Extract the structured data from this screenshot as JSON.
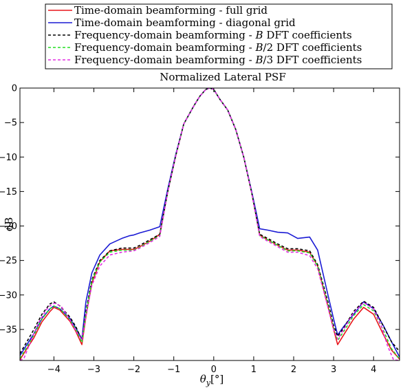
{
  "chart_data": {
    "type": "line",
    "title": "Normalized Lateral PSF",
    "xlabel": "θ_y[°]",
    "ylabel": "dB",
    "xlim": [
      -4.85,
      4.65
    ],
    "ylim": [
      -39.5,
      0
    ],
    "xticks": [
      -4,
      -3,
      -2,
      -1,
      0,
      1,
      2,
      3,
      4
    ],
    "yticks": [
      0,
      -5,
      -10,
      -15,
      -20,
      -25,
      -30,
      -35
    ],
    "grid": false,
    "legend_position": "top",
    "series": [
      {
        "name": "Time-domain beamforming - full grid",
        "color": "#e8151b",
        "dash": "solid",
        "x": [
          -4.85,
          -4.7,
          -4.5,
          -4.3,
          -4.1,
          -4.0,
          -3.85,
          -3.6,
          -3.45,
          -3.3,
          -3.2,
          -3.05,
          -2.85,
          -2.6,
          -2.3,
          -2.0,
          -1.85,
          -1.6,
          -1.35,
          -1.15,
          -0.95,
          -0.75,
          -0.5,
          -0.35,
          -0.2,
          -0.1,
          0.0,
          0.15,
          0.35,
          0.55,
          0.75,
          0.95,
          1.15,
          1.35,
          1.6,
          1.85,
          2.1,
          2.4,
          2.6,
          2.85,
          3.0,
          3.1,
          3.25,
          3.5,
          3.75,
          4.0,
          4.25,
          4.45,
          4.65
        ],
        "y": [
          -39.4,
          -38.0,
          -36.2,
          -33.9,
          -32.4,
          -31.8,
          -32.2,
          -33.8,
          -35.3,
          -37.2,
          -33.2,
          -28.3,
          -25.2,
          -23.6,
          -23.4,
          -23.4,
          -23.0,
          -22.2,
          -21.2,
          -15.0,
          -9.8,
          -5.2,
          -2.6,
          -1.2,
          -0.2,
          0.0,
          -0.2,
          -1.6,
          -3.2,
          -6.0,
          -10.0,
          -15.2,
          -21.3,
          -22.0,
          -22.8,
          -23.5,
          -23.5,
          -23.8,
          -25.8,
          -31.5,
          -35.0,
          -37.2,
          -35.8,
          -33.5,
          -31.8,
          -32.8,
          -35.8,
          -38.0,
          -39.3
        ]
      },
      {
        "name": "Time-domain beamforming - diagonal grid",
        "color": "#1a1ad4",
        "dash": "solid",
        "x": [
          -4.85,
          -4.7,
          -4.5,
          -4.3,
          -4.1,
          -4.0,
          -3.85,
          -3.6,
          -3.45,
          -3.3,
          -3.2,
          -3.05,
          -2.85,
          -2.6,
          -2.3,
          -2.1,
          -2.0,
          -1.85,
          -1.6,
          -1.35,
          -1.15,
          -0.95,
          -0.75,
          -0.5,
          -0.35,
          -0.2,
          -0.1,
          0.0,
          0.15,
          0.35,
          0.55,
          0.75,
          0.95,
          1.15,
          1.35,
          1.6,
          1.85,
          2.1,
          2.4,
          2.6,
          2.85,
          3.0,
          3.1,
          3.25,
          3.5,
          3.75,
          4.0,
          4.25,
          4.45,
          4.65
        ],
        "y": [
          -38.8,
          -37.4,
          -35.6,
          -33.4,
          -32.0,
          -31.6,
          -32.0,
          -33.4,
          -34.8,
          -36.4,
          -31.0,
          -26.8,
          -24.2,
          -22.6,
          -21.8,
          -21.4,
          -21.3,
          -21.0,
          -20.6,
          -20.1,
          -14.6,
          -9.6,
          -5.2,
          -2.6,
          -1.2,
          -0.2,
          0.0,
          -0.2,
          -1.6,
          -3.2,
          -6.0,
          -10.0,
          -15.0,
          -20.4,
          -20.6,
          -20.9,
          -21.0,
          -21.8,
          -21.6,
          -23.5,
          -29.8,
          -33.5,
          -35.8,
          -34.6,
          -32.8,
          -31.0,
          -32.0,
          -34.5,
          -36.8,
          -39.0
        ]
      },
      {
        "name": "Frequency-domain beamforming - B DFT coefficients",
        "color": "#000000",
        "dash": "dashed",
        "x": [
          -4.85,
          -4.7,
          -4.5,
          -4.3,
          -4.1,
          -4.0,
          -3.85,
          -3.6,
          -3.45,
          -3.3,
          -3.2,
          -3.05,
          -2.85,
          -2.6,
          -2.3,
          -2.0,
          -1.85,
          -1.6,
          -1.35,
          -1.15,
          -0.95,
          -0.75,
          -0.5,
          -0.35,
          -0.2,
          -0.1,
          0.0,
          0.15,
          0.35,
          0.55,
          0.75,
          0.95,
          1.15,
          1.35,
          1.6,
          1.85,
          2.1,
          2.4,
          2.6,
          2.85,
          3.0,
          3.1,
          3.25,
          3.5,
          3.75,
          4.0,
          4.25,
          4.45,
          4.65
        ],
        "y": [
          -38.5,
          -37.0,
          -35.0,
          -32.8,
          -31.3,
          -31.0,
          -31.6,
          -33.2,
          -34.6,
          -36.6,
          -32.4,
          -27.8,
          -25.0,
          -23.6,
          -23.2,
          -23.2,
          -22.8,
          -22.0,
          -21.2,
          -15.0,
          -9.8,
          -5.2,
          -2.6,
          -1.2,
          -0.2,
          0.0,
          -0.2,
          -1.6,
          -3.2,
          -6.0,
          -10.0,
          -15.2,
          -21.2,
          -21.8,
          -22.6,
          -23.3,
          -23.3,
          -23.6,
          -25.6,
          -30.8,
          -34.4,
          -36.0,
          -34.8,
          -32.4,
          -30.9,
          -31.8,
          -34.6,
          -36.8,
          -38.2
        ]
      },
      {
        "name": "Frequency-domain beamforming - B/2 DFT coefficients",
        "color": "#22dd22",
        "dash": "dashed",
        "x": [
          -4.85,
          -4.7,
          -4.5,
          -4.3,
          -4.1,
          -4.0,
          -3.85,
          -3.6,
          -3.45,
          -3.3,
          -3.2,
          -3.05,
          -2.85,
          -2.6,
          -2.3,
          -2.0,
          -1.85,
          -1.6,
          -1.35,
          -1.15,
          -0.95,
          -0.75,
          -0.5,
          -0.35,
          -0.2,
          -0.1,
          0.0,
          0.15,
          0.35,
          0.55,
          0.75,
          0.95,
          1.15,
          1.35,
          1.6,
          1.85,
          2.1,
          2.4,
          2.6,
          2.85,
          3.0,
          3.1,
          3.25,
          3.5,
          3.75,
          4.0,
          4.25,
          4.45,
          4.65
        ],
        "y": [
          -39.2,
          -37.8,
          -35.8,
          -33.5,
          -32.0,
          -31.6,
          -32.0,
          -33.6,
          -35.0,
          -36.9,
          -32.8,
          -28.0,
          -25.2,
          -23.8,
          -23.5,
          -23.5,
          -23.1,
          -22.2,
          -21.4,
          -15.0,
          -9.8,
          -5.2,
          -2.6,
          -1.2,
          -0.2,
          0.0,
          -0.2,
          -1.6,
          -3.2,
          -6.0,
          -10.0,
          -15.2,
          -21.4,
          -22.0,
          -22.8,
          -23.6,
          -23.6,
          -23.9,
          -25.8,
          -31.2,
          -34.8,
          -36.6,
          -35.3,
          -33.0,
          -31.4,
          -32.3,
          -35.2,
          -37.8,
          -39.3
        ]
      },
      {
        "name": "Frequency-domain beamforming - B/3 DFT coefficients",
        "color": "#e22ce2",
        "dash": "dashed",
        "x": [
          -4.85,
          -4.75,
          -4.6,
          -4.4,
          -4.2,
          -4.05,
          -3.95,
          -3.8,
          -3.6,
          -3.45,
          -3.3,
          -3.2,
          -3.05,
          -2.85,
          -2.6,
          -2.3,
          -2.0,
          -1.85,
          -1.6,
          -1.35,
          -1.15,
          -0.95,
          -0.75,
          -0.5,
          -0.35,
          -0.2,
          -0.1,
          0.0,
          0.15,
          0.35,
          0.55,
          0.75,
          0.95,
          1.15,
          1.35,
          1.6,
          1.85,
          2.1,
          2.4,
          2.6,
          2.85,
          3.0,
          3.1,
          3.25,
          3.5,
          3.75,
          4.0,
          4.2,
          4.35,
          4.5,
          4.65
        ],
        "y": [
          -39.5,
          -39.2,
          -37.0,
          -34.2,
          -32.2,
          -31.3,
          -31.2,
          -31.8,
          -33.6,
          -35.2,
          -36.5,
          -33.0,
          -28.6,
          -25.8,
          -24.2,
          -23.8,
          -23.6,
          -23.2,
          -22.4,
          -21.5,
          -15.0,
          -9.8,
          -5.2,
          -2.6,
          -1.2,
          -0.2,
          0.0,
          -0.2,
          -1.6,
          -3.2,
          -6.0,
          -10.0,
          -15.2,
          -21.5,
          -22.2,
          -23.0,
          -23.8,
          -23.8,
          -24.3,
          -26.2,
          -31.6,
          -35.0,
          -36.4,
          -35.0,
          -32.6,
          -31.1,
          -32.0,
          -34.6,
          -37.4,
          -39.4,
          -39.5
        ]
      }
    ]
  }
}
